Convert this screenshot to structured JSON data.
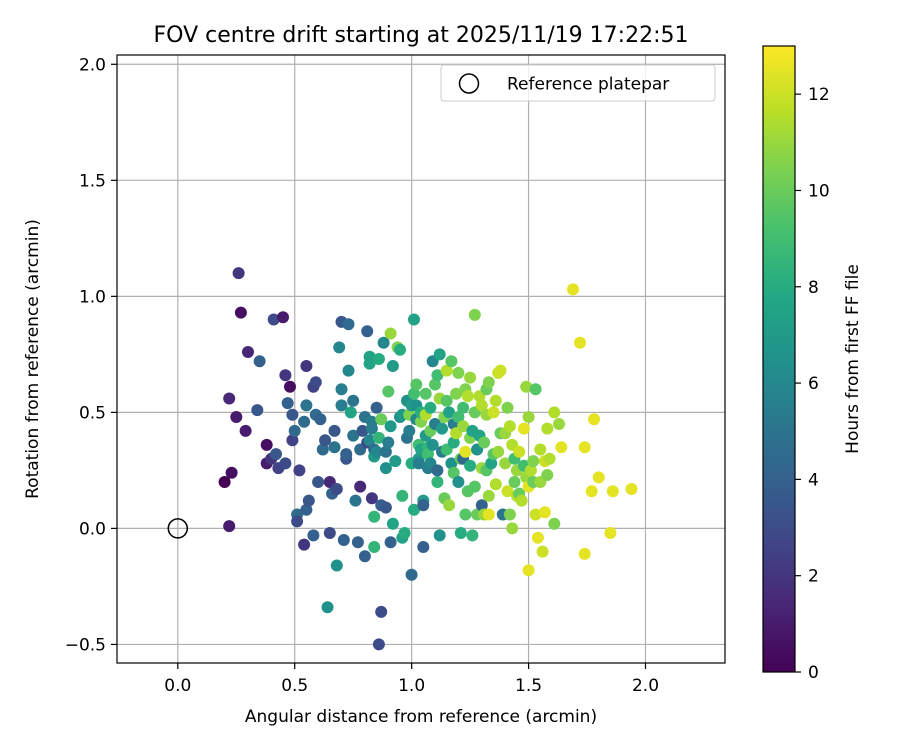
{
  "chart_data": {
    "type": "scatter",
    "title": "FOV centre drift starting at 2025/11/19 17:22:51",
    "xlabel": "Angular distance from reference (arcmin)",
    "ylabel": "Rotation from reference (arcmin)",
    "xlim": [
      -0.26,
      2.34
    ],
    "ylim": [
      -0.58,
      2.04
    ],
    "xticks": [
      0.0,
      0.5,
      1.0,
      1.5,
      2.0
    ],
    "xtick_labels": [
      "0.0",
      "0.5",
      "1.0",
      "1.5",
      "2.0"
    ],
    "yticks": [
      -0.5,
      0.0,
      0.5,
      1.0,
      1.5,
      2.0
    ],
    "ytick_labels": [
      "−0.5",
      "0.0",
      "0.5",
      "1.0",
      "1.5",
      "2.0"
    ],
    "grid": true,
    "legend": {
      "placement": "top-right",
      "entries": [
        "Reference platepar"
      ]
    },
    "reference": {
      "x": 0.0,
      "y": 0.0,
      "label": "Reference platepar"
    },
    "colorbar": {
      "label": "Hours from first FF file",
      "range": [
        0,
        13
      ],
      "ticks": [
        0,
        2,
        4,
        6,
        8,
        10,
        12
      ],
      "tick_labels": [
        "0",
        "2",
        "4",
        "6",
        "8",
        "10",
        "12"
      ],
      "colormap": "viridis"
    },
    "points": [
      [
        0.2,
        0.2,
        0.0
      ],
      [
        0.22,
        0.01,
        1.0
      ],
      [
        0.23,
        0.24,
        0.5
      ],
      [
        0.22,
        0.56,
        1.5
      ],
      [
        0.25,
        0.48,
        1.0
      ],
      [
        0.26,
        1.1,
        2.0
      ],
      [
        0.27,
        0.93,
        0.5
      ],
      [
        0.29,
        0.42,
        1.0
      ],
      [
        0.3,
        0.76,
        1.5
      ],
      [
        0.34,
        0.51,
        3.5
      ],
      [
        0.35,
        0.72,
        4.0
      ],
      [
        0.38,
        0.36,
        0.5
      ],
      [
        0.38,
        0.28,
        1.0
      ],
      [
        0.4,
        0.3,
        2.0
      ],
      [
        0.41,
        0.9,
        3.0
      ],
      [
        0.42,
        0.32,
        3.5
      ],
      [
        0.43,
        0.26,
        2.5
      ],
      [
        0.45,
        0.91,
        1.0
      ],
      [
        0.46,
        0.28,
        3.0
      ],
      [
        0.46,
        0.66,
        2.0
      ],
      [
        0.47,
        0.54,
        4.0
      ],
      [
        0.48,
        0.61,
        0.5
      ],
      [
        0.49,
        0.38,
        2.5
      ],
      [
        0.5,
        0.42,
        4.5
      ],
      [
        0.49,
        0.49,
        3.5
      ],
      [
        0.51,
        0.06,
        4.5
      ],
      [
        0.51,
        0.03,
        3.0
      ],
      [
        0.52,
        0.25,
        2.5
      ],
      [
        0.54,
        0.46,
        4.5
      ],
      [
        0.54,
        -0.07,
        2.0
      ],
      [
        0.55,
        0.08,
        4.0
      ],
      [
        0.56,
        0.12,
        3.5
      ],
      [
        0.55,
        0.7,
        2.0
      ],
      [
        0.55,
        0.53,
        5.0
      ],
      [
        0.58,
        0.61,
        2.5
      ],
      [
        0.58,
        -0.03,
        4.0
      ],
      [
        0.59,
        0.49,
        4.5
      ],
      [
        0.59,
        0.63,
        3.0
      ],
      [
        0.6,
        0.2,
        3.5
      ],
      [
        0.61,
        0.47,
        4.0
      ],
      [
        0.62,
        0.34,
        4.5
      ],
      [
        0.63,
        0.38,
        3.5
      ],
      [
        0.64,
        -0.34,
        6.5
      ],
      [
        0.65,
        0.2,
        1.5
      ],
      [
        0.65,
        -0.02,
        3.0
      ],
      [
        0.66,
        0.15,
        4.0
      ],
      [
        0.67,
        0.42,
        3.5
      ],
      [
        0.67,
        0.35,
        5.0
      ],
      [
        0.68,
        0.17,
        3.0
      ],
      [
        0.68,
        -0.16,
        6.5
      ],
      [
        0.69,
        0.78,
        6.0
      ],
      [
        0.7,
        0.53,
        5.5
      ],
      [
        0.7,
        0.89,
        3.5
      ],
      [
        0.7,
        0.6,
        5.5
      ],
      [
        0.71,
        -0.05,
        4.0
      ],
      [
        0.72,
        0.3,
        3.5
      ],
      [
        0.72,
        0.32,
        4.0
      ],
      [
        0.73,
        0.88,
        4.5
      ],
      [
        0.73,
        0.68,
        6.0
      ],
      [
        0.74,
        0.5,
        7.5
      ],
      [
        0.75,
        0.55,
        5.0
      ],
      [
        0.75,
        0.4,
        5.0
      ],
      [
        0.76,
        0.12,
        5.0
      ],
      [
        0.77,
        -0.06,
        4.0
      ],
      [
        0.78,
        0.18,
        1.5
      ],
      [
        0.78,
        0.34,
        4.5
      ],
      [
        0.79,
        0.42,
        3.5
      ],
      [
        0.8,
        -0.12,
        4.0
      ],
      [
        0.8,
        0.48,
        5.0
      ],
      [
        0.81,
        0.85,
        4.0
      ],
      [
        0.81,
        0.37,
        3.0
      ],
      [
        0.82,
        0.71,
        7.5
      ],
      [
        0.82,
        0.38,
        6.0
      ],
      [
        0.82,
        0.74,
        7.5
      ],
      [
        0.83,
        0.13,
        2.0
      ],
      [
        0.83,
        0.46,
        5.5
      ],
      [
        0.83,
        0.43,
        5.5
      ],
      [
        0.84,
        -0.08,
        8.5
      ],
      [
        0.84,
        0.05,
        8.5
      ],
      [
        0.84,
        0.34,
        4.5
      ],
      [
        0.84,
        0.31,
        7.0
      ],
      [
        0.85,
        0.52,
        4.0
      ],
      [
        0.85,
        0.33,
        6.0
      ],
      [
        0.86,
        0.39,
        8.5
      ],
      [
        0.86,
        0.73,
        8.0
      ],
      [
        0.86,
        -0.5,
        3.0
      ],
      [
        0.87,
        0.47,
        10.0
      ],
      [
        0.87,
        0.1,
        4.0
      ],
      [
        0.87,
        -0.36,
        3.0
      ],
      [
        0.88,
        0.8,
        6.0
      ],
      [
        0.89,
        0.26,
        6.5
      ],
      [
        0.89,
        0.33,
        5.0
      ],
      [
        0.89,
        0.09,
        3.5
      ],
      [
        0.9,
        0.59,
        9.5
      ],
      [
        0.9,
        0.37,
        5.5
      ],
      [
        0.91,
        0.44,
        7.0
      ],
      [
        0.91,
        0.84,
        11.0
      ],
      [
        0.91,
        -0.06,
        4.0
      ],
      [
        0.92,
        0.7,
        7.0
      ],
      [
        0.92,
        0.02,
        7.5
      ],
      [
        0.93,
        0.29,
        7.0
      ],
      [
        0.94,
        0.78,
        10.5
      ],
      [
        0.95,
        0.48,
        6.5
      ],
      [
        0.95,
        0.77,
        8.0
      ],
      [
        0.96,
        0.14,
        8.5
      ],
      [
        0.96,
        0.49,
        7.0
      ],
      [
        0.96,
        -0.04,
        7.5
      ],
      [
        0.97,
        -0.02,
        8.0
      ],
      [
        0.98,
        0.55,
        6.5
      ],
      [
        0.98,
        0.39,
        5.0
      ],
      [
        0.99,
        0.49,
        10.5
      ],
      [
        0.99,
        0.42,
        5.5
      ],
      [
        1.0,
        -0.2,
        4.5
      ],
      [
        1.0,
        0.28,
        8.0
      ],
      [
        1.0,
        0.53,
        7.0
      ],
      [
        1.01,
        0.9,
        7.5
      ],
      [
        1.01,
        0.08,
        8.0
      ],
      [
        1.01,
        0.58,
        9.0
      ],
      [
        1.02,
        0.62,
        9.5
      ],
      [
        1.02,
        0.47,
        6.0
      ],
      [
        1.02,
        0.53,
        6.5
      ],
      [
        1.03,
        0.36,
        9.0
      ],
      [
        1.03,
        0.3,
        7.0
      ],
      [
        1.03,
        0.28,
        5.5
      ],
      [
        1.04,
        0.46,
        10.5
      ],
      [
        1.04,
        0.5,
        8.0
      ],
      [
        1.04,
        0.34,
        7.5
      ],
      [
        1.05,
        0.12,
        7.0
      ],
      [
        1.05,
        0.1,
        4.0
      ],
      [
        1.05,
        -0.08,
        4.0
      ],
      [
        1.06,
        0.58,
        9.5
      ],
      [
        1.06,
        0.4,
        7.0
      ],
      [
        1.06,
        0.49,
        11.5
      ],
      [
        1.07,
        0.35,
        8.5
      ],
      [
        1.07,
        0.32,
        9.0
      ],
      [
        1.07,
        0.26,
        5.5
      ],
      [
        1.08,
        0.42,
        10.0
      ],
      [
        1.08,
        0.28,
        6.0
      ],
      [
        1.08,
        0.52,
        8.0
      ],
      [
        1.09,
        0.72,
        6.0
      ],
      [
        1.09,
        0.36,
        6.5
      ],
      [
        1.1,
        0.62,
        9.5
      ],
      [
        1.1,
        0.45,
        5.5
      ],
      [
        1.11,
        0.2,
        8.5
      ],
      [
        1.11,
        0.25,
        4.5
      ],
      [
        1.11,
        0.66,
        9.0
      ],
      [
        1.12,
        0.75,
        7.5
      ],
      [
        1.12,
        -0.03,
        6.5
      ],
      [
        1.12,
        0.56,
        11.0
      ],
      [
        1.13,
        0.43,
        7.0
      ],
      [
        1.13,
        0.33,
        5.5
      ],
      [
        1.14,
        0.48,
        10.5
      ],
      [
        1.14,
        0.13,
        10.0
      ],
      [
        1.15,
        0.68,
        11.5
      ],
      [
        1.15,
        0.34,
        9.0
      ],
      [
        1.15,
        0.55,
        9.5
      ],
      [
        1.16,
        0.5,
        7.5
      ],
      [
        1.16,
        0.1,
        11.0
      ],
      [
        1.17,
        0.28,
        6.5
      ],
      [
        1.17,
        0.72,
        9.5
      ],
      [
        1.18,
        0.37,
        8.0
      ],
      [
        1.18,
        0.24,
        9.5
      ],
      [
        1.18,
        0.45,
        5.5
      ],
      [
        1.19,
        0.58,
        10.5
      ],
      [
        1.19,
        0.41,
        11.5
      ],
      [
        1.2,
        0.48,
        9.0
      ],
      [
        1.2,
        0.67,
        10.5
      ],
      [
        1.2,
        0.2,
        6.5
      ],
      [
        1.21,
        0.3,
        10.0
      ],
      [
        1.21,
        -0.02,
        8.0
      ],
      [
        1.22,
        0.52,
        9.0
      ],
      [
        1.22,
        0.3,
        4.5
      ],
      [
        1.22,
        0.44,
        11.0
      ],
      [
        1.23,
        0.33,
        12.5
      ],
      [
        1.23,
        0.06,
        9.5
      ],
      [
        1.23,
        0.6,
        10.5
      ],
      [
        1.24,
        0.57,
        11.5
      ],
      [
        1.24,
        0.16,
        9.5
      ],
      [
        1.25,
        0.65,
        11.0
      ],
      [
        1.25,
        0.39,
        10.5
      ],
      [
        1.25,
        0.27,
        8.0
      ],
      [
        1.26,
        -0.03,
        8.5
      ],
      [
        1.26,
        0.42,
        7.5
      ],
      [
        1.27,
        0.92,
        10.5
      ],
      [
        1.27,
        0.18,
        9.5
      ],
      [
        1.27,
        0.5,
        10.0
      ],
      [
        1.28,
        0.34,
        6.5
      ],
      [
        1.28,
        0.06,
        10.0
      ],
      [
        1.29,
        0.57,
        11.5
      ],
      [
        1.29,
        0.4,
        7.5
      ],
      [
        1.3,
        0.26,
        11.0
      ],
      [
        1.3,
        0.53,
        11.5
      ],
      [
        1.3,
        0.1,
        4.0
      ],
      [
        1.31,
        0.06,
        11.0
      ],
      [
        1.31,
        0.37,
        10.0
      ],
      [
        1.32,
        0.6,
        10.0
      ],
      [
        1.32,
        0.25,
        9.5
      ],
      [
        1.32,
        0.49,
        11.0
      ],
      [
        1.33,
        0.06,
        12.5
      ],
      [
        1.33,
        0.14,
        11.0
      ],
      [
        1.33,
        0.63,
        10.5
      ],
      [
        1.34,
        0.28,
        7.5
      ],
      [
        1.35,
        0.5,
        12.0
      ],
      [
        1.35,
        0.32,
        9.5
      ],
      [
        1.36,
        0.19,
        11.5
      ],
      [
        1.36,
        0.55,
        11.5
      ],
      [
        1.37,
        0.67,
        12.0
      ],
      [
        1.37,
        0.33,
        11.0
      ],
      [
        1.38,
        0.68,
        12.0
      ],
      [
        1.38,
        0.41,
        10.0
      ],
      [
        1.39,
        0.06,
        5.0
      ],
      [
        1.4,
        0.28,
        11.0
      ],
      [
        1.4,
        0.41,
        11.0
      ],
      [
        1.41,
        0.16,
        12.0
      ],
      [
        1.41,
        0.52,
        10.5
      ],
      [
        1.42,
        0.44,
        11.5
      ],
      [
        1.42,
        0.06,
        10.5
      ],
      [
        1.43,
        0.0,
        11.0
      ],
      [
        1.43,
        0.36,
        11.5
      ],
      [
        1.44,
        0.2,
        10.0
      ],
      [
        1.44,
        0.3,
        9.0
      ],
      [
        1.45,
        0.25,
        11.0
      ],
      [
        1.45,
        0.14,
        11.5
      ],
      [
        1.46,
        0.15,
        10.0
      ],
      [
        1.46,
        0.33,
        12.0
      ],
      [
        1.47,
        0.12,
        11.5
      ],
      [
        1.48,
        0.43,
        12.5
      ],
      [
        1.48,
        0.27,
        9.0
      ],
      [
        1.49,
        0.22,
        11.0
      ],
      [
        1.49,
        0.61,
        11.0
      ],
      [
        1.5,
        -0.18,
        12.5
      ],
      [
        1.5,
        0.18,
        12.5
      ],
      [
        1.5,
        0.48,
        11.0
      ],
      [
        1.51,
        0.25,
        11.5
      ],
      [
        1.52,
        0.29,
        10.5
      ],
      [
        1.52,
        0.2,
        10.0
      ],
      [
        1.53,
        0.06,
        12.0
      ],
      [
        1.53,
        0.6,
        9.5
      ],
      [
        1.54,
        -0.04,
        12.5
      ],
      [
        1.55,
        0.2,
        11.0
      ],
      [
        1.55,
        0.34,
        11.5
      ],
      [
        1.56,
        -0.1,
        12.0
      ],
      [
        1.57,
        0.07,
        12.5
      ],
      [
        1.57,
        0.29,
        12.0
      ],
      [
        1.58,
        0.43,
        11.5
      ],
      [
        1.58,
        0.23,
        10.5
      ],
      [
        1.59,
        0.3,
        11.5
      ],
      [
        1.61,
        0.5,
        11.5
      ],
      [
        1.61,
        0.02,
        10.5
      ],
      [
        1.63,
        0.45,
        11.0
      ],
      [
        1.64,
        0.35,
        12.5
      ],
      [
        1.69,
        1.03,
        12.5
      ],
      [
        1.72,
        0.8,
        12.5
      ],
      [
        1.74,
        -0.11,
        12.5
      ],
      [
        1.74,
        0.35,
        12.5
      ],
      [
        1.77,
        0.16,
        12.5
      ],
      [
        1.78,
        0.47,
        12.5
      ],
      [
        1.8,
        0.22,
        12.5
      ],
      [
        1.85,
        -0.02,
        12.5
      ],
      [
        1.86,
        0.16,
        12.5
      ],
      [
        1.94,
        0.17,
        12.5
      ]
    ]
  }
}
